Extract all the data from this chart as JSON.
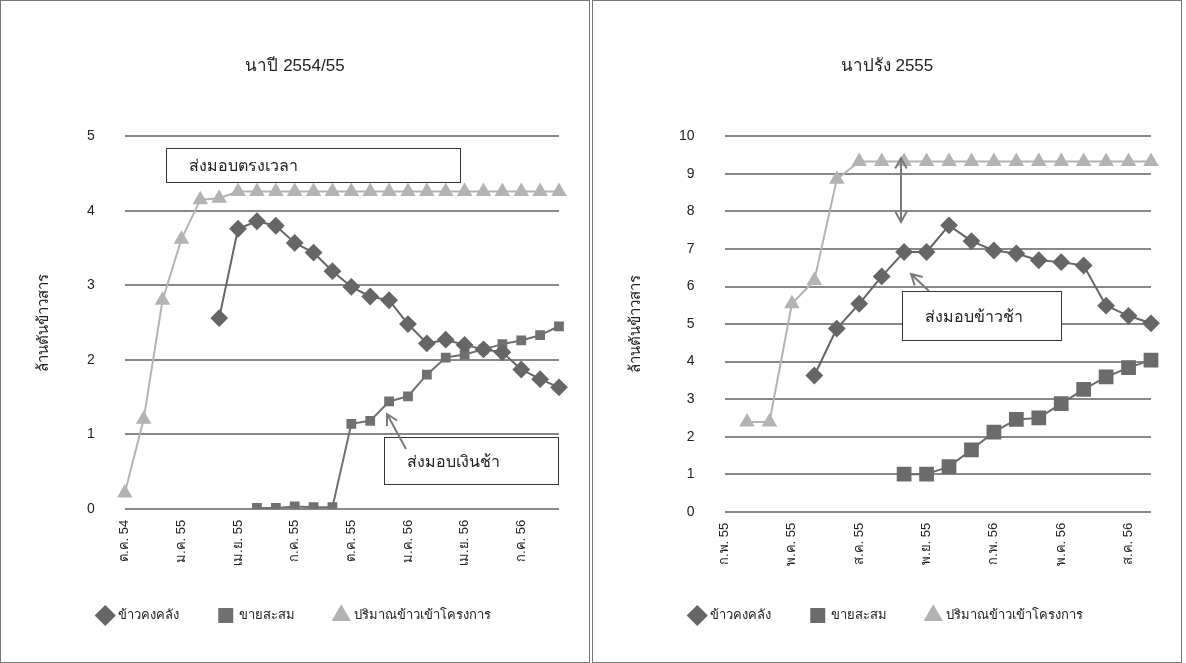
{
  "chart_data": [
    {
      "type": "line",
      "title": "นาปี 2554/55",
      "ylabel": "ล้านตันข้าวสาร",
      "categories": [
        "ต.ค. 54",
        null,
        null,
        "ม.ค. 55",
        null,
        null,
        "เม.ย. 55",
        null,
        null,
        "ก.ค. 55",
        null,
        null,
        "ต.ค. 55",
        null,
        null,
        "ม.ค. 56",
        null,
        null,
        "เม.ย. 56",
        null,
        null,
        "ก.ค. 56",
        null,
        null
      ],
      "series": [
        {
          "name": "ข้าวคงคลัง",
          "color": "#666666",
          "marker": "diamond",
          "values": [
            null,
            null,
            null,
            null,
            null,
            2.56,
            3.76,
            3.86,
            3.8,
            3.57,
            3.44,
            3.19,
            2.98,
            2.85,
            2.8,
            2.48,
            2.22,
            2.27,
            2.2,
            2.14,
            2.1,
            1.87,
            1.74,
            1.63
          ]
        },
        {
          "name": "ขายสะสม",
          "color": "#707070",
          "marker": "square",
          "values": [
            null,
            null,
            null,
            null,
            null,
            null,
            null,
            0.01,
            0.01,
            0.03,
            0.02,
            0.02,
            1.14,
            1.18,
            1.44,
            1.51,
            1.8,
            2.03,
            2.07,
            2.14,
            2.21,
            2.26,
            2.33,
            2.45
          ]
        },
        {
          "name": "ปริมาณข้าวเข้าโครงการ",
          "color": "#b3b3b3",
          "marker": "triangle",
          "values": [
            0.21,
            1.2,
            2.8,
            3.62,
            4.15,
            4.17,
            4.26,
            4.26,
            4.26,
            4.26,
            4.26,
            4.26,
            4.26,
            4.26,
            4.26,
            4.26,
            4.26,
            4.26,
            4.26,
            4.26,
            4.26,
            4.26,
            4.26,
            4.26
          ]
        }
      ],
      "ylim": [
        0,
        5
      ],
      "yticks": [
        0,
        1,
        2,
        3,
        4,
        5
      ],
      "grid": "y",
      "legend": "bottom",
      "annotations": [
        "ส่งมอบตรงเวลา",
        "ส่งมอบเงินช้า"
      ]
    },
    {
      "type": "line",
      "title": "นาปรัง 2555",
      "ylabel": "ล้านตันข้าวสาร",
      "categories": [
        "ก.พ. 55",
        null,
        null,
        "พ.ค. 55",
        null,
        null,
        "ส.ค. 55",
        null,
        null,
        "พ.ย. 55",
        null,
        null,
        "ก.พ. 56",
        null,
        null,
        "พ.ค. 56",
        null,
        null,
        "ส.ค. 56",
        null
      ],
      "series": [
        {
          "name": "ข้าวคงคลัง",
          "color": "#666666",
          "marker": "diamond",
          "values": [
            null,
            null,
            null,
            null,
            3.63,
            4.88,
            5.54,
            6.27,
            6.92,
            6.92,
            7.63,
            7.21,
            6.96,
            6.88,
            6.7,
            6.65,
            6.56,
            5.49,
            5.22,
            5.02
          ]
        },
        {
          "name": "ขายสะสม",
          "color": "#6b6b6b",
          "marker": "square",
          "values": [
            null,
            null,
            null,
            null,
            null,
            null,
            null,
            null,
            1.0,
            1.0,
            1.2,
            1.65,
            2.12,
            2.46,
            2.5,
            2.88,
            3.26,
            3.59,
            3.84,
            4.04
          ]
        },
        {
          "name": "ปริมาณข้าวเข้าโครงการ",
          "color": "#b3b3b3",
          "marker": "triangle",
          "values": [
            null,
            2.39,
            2.39,
            5.54,
            6.16,
            8.86,
            9.33,
            9.33,
            9.33,
            9.33,
            9.33,
            9.33,
            9.33,
            9.33,
            9.33,
            9.33,
            9.33,
            9.33,
            9.33,
            9.33
          ]
        }
      ],
      "ylim": [
        0,
        10
      ],
      "yticks": [
        0,
        1,
        2,
        3,
        4,
        5,
        6,
        7,
        8,
        9,
        10
      ],
      "grid": "y",
      "legend": "bottom",
      "annotations": [
        "ส่งมอบข้าวช้า"
      ]
    }
  ]
}
